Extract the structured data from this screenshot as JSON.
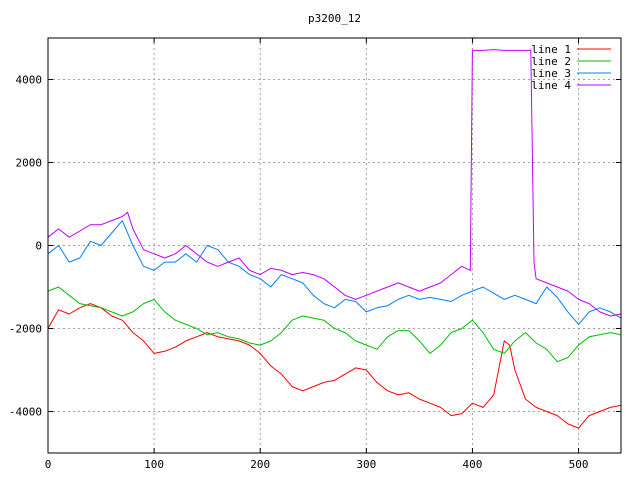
{
  "chart_data": {
    "type": "line",
    "title": "p3200_12",
    "xlabel": "",
    "ylabel": "",
    "xlim": [
      0,
      540
    ],
    "ylim": [
      -5000,
      5000
    ],
    "xticks": [
      0,
      100,
      200,
      300,
      400,
      500
    ],
    "yticks": [
      -4000,
      -2000,
      0,
      2000,
      4000
    ],
    "grid": true,
    "legend_position": "top-right",
    "series": [
      {
        "name": "line 1",
        "color": "#ff0000",
        "x": [
          0,
          10,
          20,
          30,
          40,
          50,
          60,
          70,
          80,
          90,
          100,
          110,
          120,
          130,
          140,
          150,
          160,
          170,
          180,
          190,
          200,
          210,
          220,
          230,
          240,
          250,
          260,
          270,
          280,
          290,
          300,
          310,
          320,
          330,
          340,
          350,
          360,
          370,
          380,
          390,
          400,
          410,
          420,
          430,
          435,
          440,
          450,
          460,
          470,
          480,
          490,
          500,
          510,
          520,
          530,
          540
        ],
        "values": [
          -2000,
          -1550,
          -1650,
          -1500,
          -1400,
          -1500,
          -1700,
          -1800,
          -2100,
          -2300,
          -2600,
          -2550,
          -2450,
          -2300,
          -2200,
          -2100,
          -2200,
          -2250,
          -2300,
          -2400,
          -2600,
          -2900,
          -3100,
          -3400,
          -3500,
          -3400,
          -3300,
          -3250,
          -3100,
          -2950,
          -3000,
          -3300,
          -3500,
          -3600,
          -3550,
          -3700,
          -3800,
          -3900,
          -4100,
          -4050,
          -3800,
          -3900,
          -3600,
          -2300,
          -2400,
          -3000,
          -3700,
          -3900,
          -4000,
          -4100,
          -4300,
          -4400,
          -4100,
          -4000,
          -3900,
          -3850
        ]
      },
      {
        "name": "line 2",
        "color": "#00c000",
        "x": [
          0,
          10,
          20,
          30,
          40,
          50,
          60,
          70,
          80,
          90,
          100,
          110,
          120,
          130,
          140,
          150,
          160,
          170,
          180,
          190,
          200,
          210,
          220,
          230,
          240,
          250,
          260,
          270,
          280,
          290,
          300,
          310,
          320,
          330,
          340,
          350,
          360,
          370,
          380,
          390,
          400,
          410,
          420,
          430,
          440,
          450,
          460,
          470,
          480,
          490,
          500,
          510,
          520,
          530,
          540
        ],
        "values": [
          -1100,
          -1000,
          -1200,
          -1400,
          -1450,
          -1500,
          -1600,
          -1700,
          -1600,
          -1400,
          -1300,
          -1600,
          -1800,
          -1900,
          -2000,
          -2150,
          -2100,
          -2200,
          -2250,
          -2350,
          -2400,
          -2300,
          -2100,
          -1800,
          -1700,
          -1750,
          -1800,
          -2000,
          -2100,
          -2300,
          -2400,
          -2500,
          -2200,
          -2050,
          -2050,
          -2300,
          -2600,
          -2400,
          -2100,
          -2000,
          -1800,
          -2100,
          -2500,
          -2600,
          -2300,
          -2100,
          -2350,
          -2500,
          -2800,
          -2700,
          -2400,
          -2200,
          -2150,
          -2100,
          -2150
        ]
      },
      {
        "name": "line 3",
        "color": "#0080ff",
        "x": [
          0,
          10,
          20,
          30,
          40,
          50,
          60,
          70,
          80,
          90,
          100,
          110,
          120,
          130,
          140,
          150,
          160,
          170,
          180,
          190,
          200,
          210,
          220,
          230,
          240,
          250,
          260,
          270,
          280,
          290,
          300,
          310,
          320,
          330,
          340,
          350,
          360,
          370,
          380,
          390,
          400,
          410,
          420,
          430,
          440,
          450,
          460,
          470,
          480,
          490,
          500,
          510,
          520,
          530,
          540
        ],
        "values": [
          -200,
          0,
          -400,
          -300,
          100,
          0,
          300,
          600,
          0,
          -500,
          -600,
          -400,
          -400,
          -200,
          -400,
          0,
          -100,
          -400,
          -500,
          -700,
          -800,
          -1000,
          -700,
          -800,
          -900,
          -1200,
          -1400,
          -1500,
          -1300,
          -1350,
          -1600,
          -1500,
          -1450,
          -1300,
          -1200,
          -1300,
          -1250,
          -1300,
          -1350,
          -1200,
          -1100,
          -1000,
          -1150,
          -1300,
          -1200,
          -1300,
          -1400,
          -1000,
          -1250,
          -1600,
          -1900,
          -1600,
          -1500,
          -1600,
          -1750
        ]
      },
      {
        "name": "line 4",
        "color": "#c000ff",
        "x": [
          0,
          10,
          20,
          30,
          40,
          50,
          60,
          70,
          75,
          80,
          90,
          100,
          110,
          120,
          130,
          140,
          150,
          160,
          170,
          180,
          190,
          200,
          210,
          220,
          230,
          240,
          250,
          260,
          270,
          280,
          290,
          300,
          310,
          320,
          330,
          340,
          350,
          360,
          370,
          380,
          390,
          398,
          400,
          410,
          420,
          430,
          440,
          450,
          455,
          458,
          460,
          470,
          480,
          490,
          500,
          510,
          520,
          530,
          540
        ],
        "values": [
          200,
          400,
          200,
          350,
          500,
          500,
          600,
          700,
          800,
          400,
          -100,
          -200,
          -300,
          -200,
          0,
          -200,
          -400,
          -500,
          -400,
          -300,
          -600,
          -700,
          -550,
          -600,
          -700,
          -650,
          -700,
          -800,
          -1000,
          -1200,
          -1300,
          -1200,
          -1100,
          -1000,
          -900,
          -1000,
          -1100,
          -1000,
          -900,
          -700,
          -500,
          -600,
          4700,
          4700,
          4720,
          4700,
          4700,
          4700,
          4700,
          -400,
          -800,
          -900,
          -1000,
          -1100,
          -1300,
          -1400,
          -1600,
          -1700,
          -1650
        ]
      }
    ]
  }
}
